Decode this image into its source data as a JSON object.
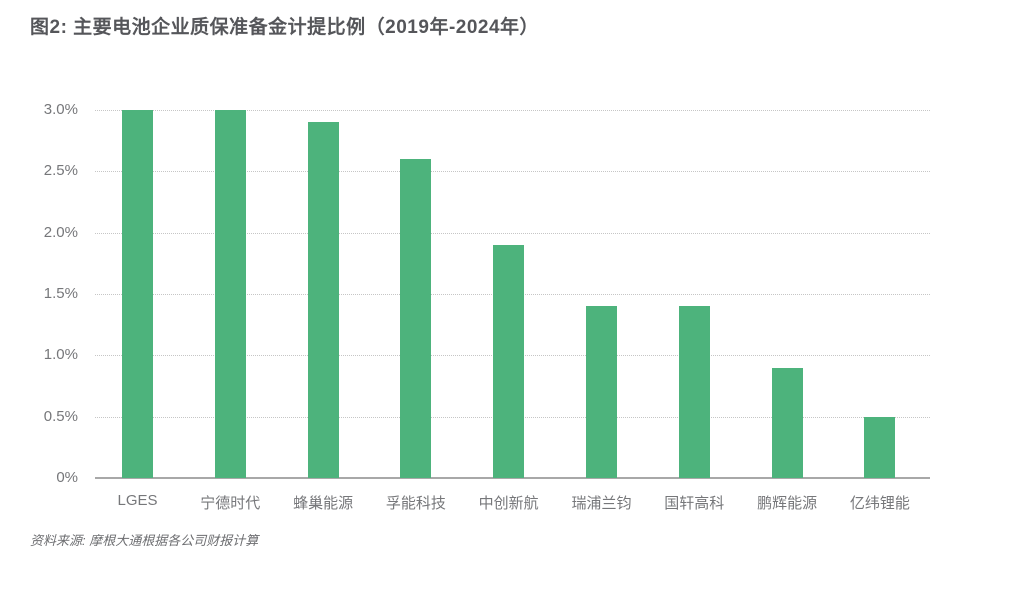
{
  "title": "图2: 主要电池企业质保准备金计提比例（2019年-2024年）",
  "source": "资料来源: 摩根大通根据各公司财报计算",
  "colors": {
    "bar": "#4db37c",
    "title_text": "#55565a",
    "axis_label": "#76777a",
    "gridline": "#c6c6c6",
    "baseline": "#a8a8a8",
    "source_text": "#6d6e71",
    "background": "#ffffff"
  },
  "chart_data": {
    "type": "bar",
    "title": "图2: 主要电池企业质保准备金计提比例（2019年-2024年）",
    "categories": [
      "LGES",
      "宁德时代",
      "蜂巢能源",
      "孚能科技",
      "中创新航",
      "瑞浦兰钧",
      "国轩高科",
      "鹏辉能源",
      "亿纬锂能"
    ],
    "values": [
      3.0,
      3.0,
      2.9,
      2.6,
      1.9,
      1.4,
      1.4,
      0.9,
      0.5
    ],
    "unit": "%",
    "xlabel": "",
    "ylabel": "",
    "ylim": [
      0,
      3.0
    ],
    "yticks": [
      {
        "value": 0,
        "label": "0%"
      },
      {
        "value": 0.5,
        "label": "0.5%"
      },
      {
        "value": 1.0,
        "label": "1.0%"
      },
      {
        "value": 1.5,
        "label": "1.5%"
      },
      {
        "value": 2.0,
        "label": "2.0%"
      },
      {
        "value": 2.5,
        "label": "2.5%"
      },
      {
        "value": 3.0,
        "label": "3.0%"
      }
    ],
    "grid": "horizontal-dotted",
    "legend": "none",
    "bar_color": "#4db37c",
    "source": "资料来源: 摩根大通根据各公司财报计算"
  }
}
